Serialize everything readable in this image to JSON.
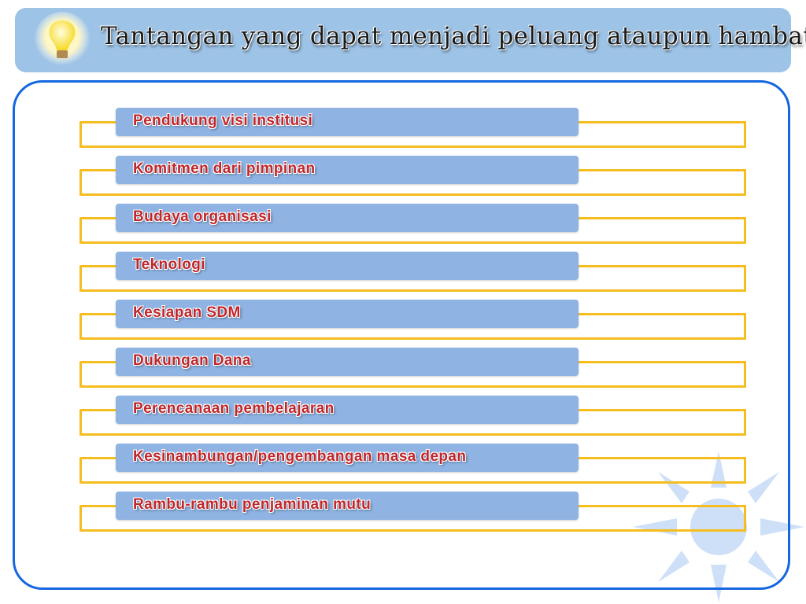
{
  "header": {
    "title": "Tantangan yang dapat menjadi peluang ataupun hambatan",
    "icon": "lightbulb-icon"
  },
  "items": [
    {
      "label": "Pendukung visi institusi"
    },
    {
      "label": "Komitmen dari pimpinan"
    },
    {
      "label": "Budaya organisasi"
    },
    {
      "label": "Teknologi"
    },
    {
      "label": "Kesiapan SDM"
    },
    {
      "label": "Dukungan Dana"
    },
    {
      "label": "Perencanaan pembelajaran"
    },
    {
      "label": "Kesinambungan/pengembangan masa depan"
    },
    {
      "label": "Rambu-rambu penjaminan mutu"
    }
  ],
  "colors": {
    "header_bg": "#9dc3e6",
    "frame": "#1566e0",
    "bar": "#8fb4e3",
    "bracket": "#f5bd1f",
    "label": "#c0262a"
  }
}
